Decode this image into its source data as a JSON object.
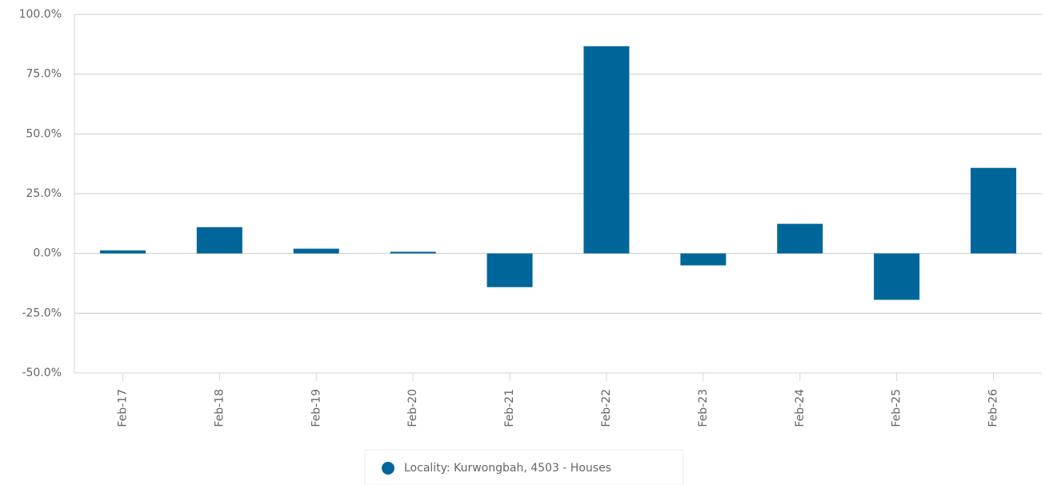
{
  "chart_data": {
    "type": "bar",
    "categories": [
      "Feb-17",
      "Feb-18",
      "Feb-19",
      "Feb-20",
      "Feb-21",
      "Feb-22",
      "Feb-23",
      "Feb-24",
      "Feb-25",
      "Feb-26"
    ],
    "series": [
      {
        "name": "Locality: Kurwongbah, 4503 - Houses",
        "color": "#006699",
        "values": [
          1.3,
          11.0,
          2.0,
          0.7,
          -14.1,
          86.7,
          -5.0,
          12.4,
          -19.4,
          35.8
        ]
      }
    ],
    "ylim": [
      -50,
      100
    ],
    "yticks": [
      {
        "value": -50,
        "label": "-50.0%"
      },
      {
        "value": -25,
        "label": "-25.0%"
      },
      {
        "value": 0,
        "label": "0.0%"
      },
      {
        "value": 25,
        "label": "25.0%"
      },
      {
        "value": 50,
        "label": "50.0%"
      },
      {
        "value": 75,
        "label": "75.0%"
      },
      {
        "value": 100,
        "label": "100.0%"
      }
    ],
    "grid": true,
    "legend": "bottom"
  }
}
